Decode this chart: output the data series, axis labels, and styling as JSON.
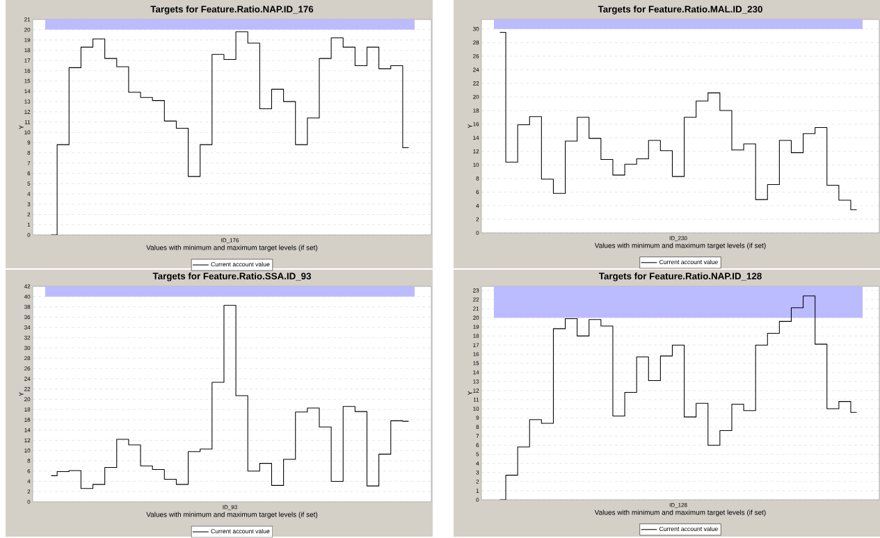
{
  "chart_data": [
    {
      "type": "step",
      "title": "Targets for Feature.Ratio.NAP.ID_176",
      "xlabel": "Values with minimum and maximum target levels (if set)",
      "ylabel": "Y",
      "categories": [
        null,
        null,
        null,
        null,
        null,
        null,
        null,
        null,
        null,
        null,
        null,
        null,
        null,
        null,
        null,
        "ID_176",
        null,
        null,
        null,
        null,
        null,
        null,
        null,
        null,
        null,
        null,
        null,
        null,
        null,
        null,
        null
      ],
      "series": [
        {
          "name": "Current account value",
          "color": "#000000",
          "values": [
            0,
            8.8,
            16.3,
            18.3,
            19.1,
            17.2,
            16.4,
            13.9,
            13.4,
            13.1,
            11.1,
            10.4,
            5.7,
            8.8,
            17.6,
            17.1,
            19.8,
            18.7,
            12.3,
            14.2,
            13.0,
            8.8,
            11.4,
            17.2,
            19.2,
            18.3,
            16.5,
            18.3,
            16.2,
            16.5,
            8.5
          ]
        }
      ],
      "ylim": [
        0,
        21
      ],
      "yticks": [
        0,
        1,
        2,
        3,
        4,
        5,
        6,
        7,
        8,
        9,
        10,
        11,
        12,
        13,
        14,
        15,
        16,
        17,
        18,
        19,
        20,
        21
      ],
      "bands": [
        {
          "axis": "y",
          "from": 20,
          "to": 21,
          "color": "#bbbbff"
        }
      ],
      "grid": "y",
      "legend": "bottom"
    },
    {
      "type": "step",
      "title": "Targets for Feature.Ratio.MAL.ID_230",
      "xlabel": "Values with minimum and maximum target levels (if set)",
      "ylabel": "Y",
      "categories": [
        null,
        null,
        null,
        null,
        null,
        null,
        null,
        null,
        null,
        null,
        null,
        null,
        null,
        null,
        null,
        "ID_230",
        null,
        null,
        null,
        null,
        null,
        null,
        null,
        null,
        null,
        null,
        null,
        null,
        null,
        null,
        null
      ],
      "series": [
        {
          "name": "Current account value",
          "color": "#000000",
          "values": [
            29.5,
            10.4,
            15.9,
            17.1,
            7.9,
            5.8,
            13.5,
            17.0,
            13.9,
            10.8,
            8.5,
            10.1,
            10.9,
            13.6,
            12.1,
            8.3,
            17.0,
            19.4,
            20.6,
            18.0,
            12.2,
            13.1,
            4.9,
            7.1,
            13.6,
            11.8,
            14.6,
            15.5,
            7.0,
            4.8,
            3.4
          ]
        }
      ],
      "ylim": [
        0,
        31.4
      ],
      "yticks": [
        0,
        2,
        4,
        6,
        8,
        10,
        12,
        14,
        16,
        18,
        20,
        22,
        24,
        26,
        28,
        30
      ],
      "bands": [
        {
          "axis": "y",
          "from": 30,
          "to": 31.4,
          "color": "#bbbbff"
        }
      ],
      "grid": "y",
      "legend": "bottom"
    },
    {
      "type": "step",
      "title": "Targets for Feature.Ratio.SSA.ID_93",
      "xlabel": "Values with minimum and maximum target levels (if set)",
      "ylabel": "Y",
      "categories": [
        null,
        null,
        null,
        null,
        null,
        null,
        null,
        null,
        null,
        null,
        null,
        null,
        null,
        null,
        null,
        "ID_93",
        null,
        null,
        null,
        null,
        null,
        null,
        null,
        null,
        null,
        null,
        null,
        null,
        null,
        null,
        null
      ],
      "series": [
        {
          "name": "Current account value",
          "color": "#000000",
          "values": [
            5.1,
            5.9,
            6.1,
            2.6,
            3.4,
            6.7,
            12.2,
            11.1,
            7.0,
            6.3,
            4.4,
            3.4,
            9.8,
            10.3,
            23.3,
            38.3,
            20.7,
            6.0,
            7.5,
            3.2,
            8.3,
            17.5,
            18.3,
            14.6,
            4.0,
            18.6,
            17.6,
            3.1,
            9.3,
            15.8,
            15.7
          ]
        }
      ],
      "ylim": [
        0,
        42
      ],
      "yticks": [
        0,
        2,
        4,
        6,
        8,
        10,
        12,
        14,
        16,
        18,
        20,
        22,
        24,
        26,
        28,
        30,
        32,
        34,
        36,
        38,
        40,
        42
      ],
      "bands": [
        {
          "axis": "y",
          "from": 40,
          "to": 42,
          "color": "#bbbbff"
        }
      ],
      "grid": "y",
      "legend": "bottom"
    },
    {
      "type": "step",
      "title": "Targets for Feature.Ratio.NAP.ID_128",
      "xlabel": "Values with minimum and maximum target levels (if set)",
      "ylabel": "Y",
      "categories": [
        null,
        null,
        null,
        null,
        null,
        null,
        null,
        null,
        null,
        null,
        null,
        null,
        null,
        null,
        null,
        "ID_128",
        null,
        null,
        null,
        null,
        null,
        null,
        null,
        null,
        null,
        null,
        null,
        null,
        null,
        null,
        null
      ],
      "series": [
        {
          "name": "Current account value",
          "color": "#000000",
          "values": [
            0,
            2.7,
            5.8,
            8.8,
            8.4,
            18.8,
            19.9,
            18.0,
            19.8,
            19.1,
            9.2,
            11.8,
            15.7,
            13.1,
            15.8,
            17.0,
            9.1,
            10.6,
            6.0,
            7.6,
            10.5,
            9.8,
            17.0,
            18.3,
            19.6,
            21.1,
            22.4,
            17.1,
            10.0,
            10.8,
            9.6
          ]
        }
      ],
      "ylim": [
        0,
        23.45
      ],
      "yticks": [
        0,
        1,
        2,
        3,
        4,
        5,
        6,
        7,
        8,
        9,
        10,
        11,
        12,
        13,
        14,
        15,
        16,
        17,
        18,
        19,
        20,
        21,
        22,
        23
      ],
      "bands": [
        {
          "axis": "y",
          "from": 20,
          "to": 23.45,
          "color": "#bbbbff"
        }
      ],
      "grid": "y",
      "legend": "bottom"
    }
  ]
}
